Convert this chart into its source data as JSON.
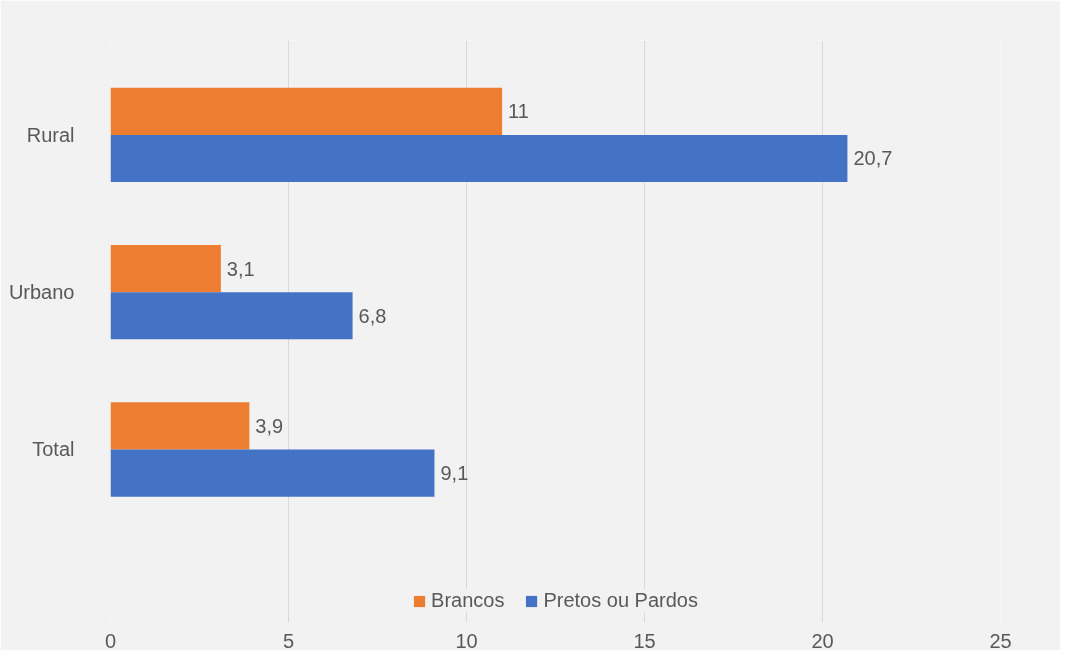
{
  "chart_data": {
    "type": "bar",
    "orientation": "horizontal",
    "categories": [
      "Rural",
      "Urbano",
      "Total"
    ],
    "series": [
      {
        "name": "Brancos",
        "color": "#ed7d31",
        "values": [
          11,
          3.1,
          3.9
        ],
        "value_labels": [
          "11",
          "3,1",
          "3,9"
        ]
      },
      {
        "name": "Pretos ou Pardos",
        "color": "#4472c4",
        "values": [
          20.7,
          6.8,
          9.1
        ],
        "value_labels": [
          "20,7",
          "6,8",
          "9,1"
        ]
      }
    ],
    "xlim": [
      0,
      25
    ],
    "xticks": [
      0,
      5,
      10,
      15,
      20,
      25
    ],
    "grid": "x",
    "legend": "bottom"
  }
}
